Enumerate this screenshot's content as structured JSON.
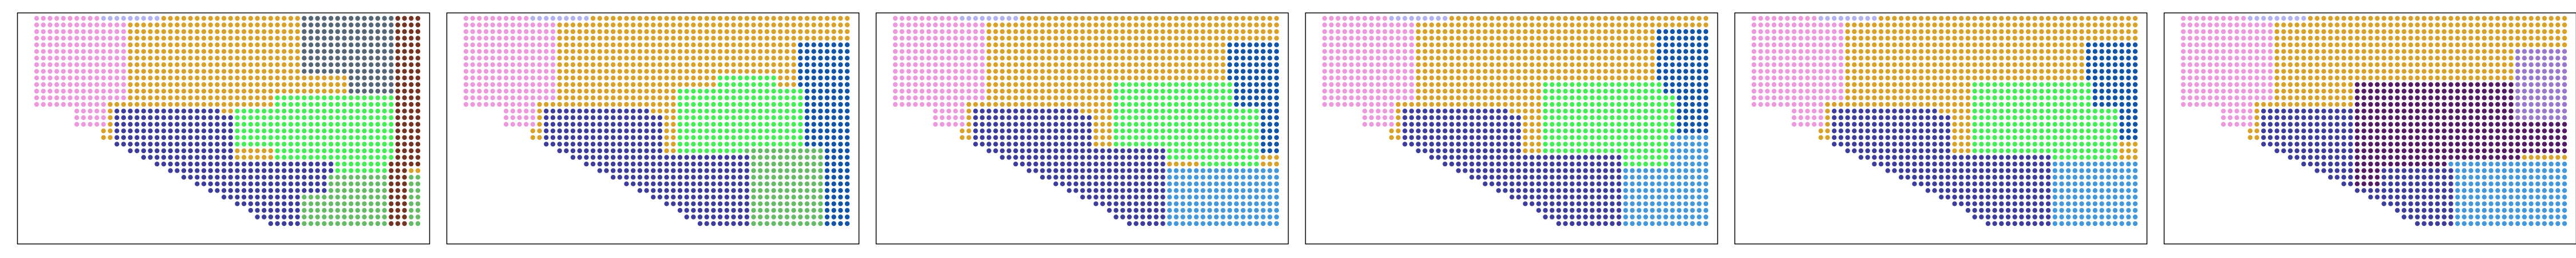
{
  "figure": {
    "background": "#ffffff",
    "panel_border_color": "#000000"
  },
  "cluster_colors": {
    "pink": "#ee99dd",
    "lavender": "#b3b3f2",
    "gold": "#d9a127",
    "green": "#44ee55",
    "navy": "#3d3d9e",
    "lightgreen": "#66bb66",
    "slate": "#556677",
    "maroon": "#773322",
    "blue": "#1155aa",
    "skyblue": "#4499dd",
    "purple": "#551a66",
    "violet": "#9977cc"
  },
  "chart_data": [
    {
      "type": "scatter",
      "panel": 1,
      "title": "",
      "xlabel": "",
      "ylabel": "",
      "grid": false,
      "legend": "none",
      "spot_grid": {
        "columns": 58,
        "rows": 32,
        "x_range": [
          0,
          1
        ],
        "y_range": [
          0,
          1
        ]
      },
      "clusters": [
        {
          "label": "pink",
          "color": "#ee99dd"
        },
        {
          "label": "lavender",
          "color": "#b3b3f2"
        },
        {
          "label": "gold",
          "color": "#d9a127"
        },
        {
          "label": "slate",
          "color": "#556677"
        },
        {
          "label": "maroon",
          "color": "#773322"
        },
        {
          "label": "green",
          "color": "#44ee55"
        },
        {
          "label": "navy",
          "color": "#3d3d9e"
        },
        {
          "label": "lightgreen",
          "color": "#66bb66"
        }
      ]
    },
    {
      "type": "scatter",
      "panel": 2,
      "title": "",
      "xlabel": "",
      "ylabel": "",
      "grid": false,
      "legend": "none",
      "spot_grid": {
        "columns": 58,
        "rows": 32,
        "x_range": [
          0,
          1
        ],
        "y_range": [
          0,
          1
        ]
      },
      "clusters": [
        {
          "label": "pink",
          "color": "#ee99dd"
        },
        {
          "label": "lavender",
          "color": "#b3b3f2"
        },
        {
          "label": "gold",
          "color": "#d9a127"
        },
        {
          "label": "blue",
          "color": "#1155aa"
        },
        {
          "label": "green",
          "color": "#44ee55"
        },
        {
          "label": "navy",
          "color": "#3d3d9e"
        },
        {
          "label": "lightgreen",
          "color": "#66bb66"
        }
      ]
    },
    {
      "type": "scatter",
      "panel": 3,
      "title": "",
      "xlabel": "",
      "ylabel": "",
      "grid": false,
      "legend": "none",
      "spot_grid": {
        "columns": 58,
        "rows": 32,
        "x_range": [
          0,
          1
        ],
        "y_range": [
          0,
          1
        ]
      },
      "clusters": [
        {
          "label": "pink",
          "color": "#ee99dd"
        },
        {
          "label": "lavender",
          "color": "#b3b3f2"
        },
        {
          "label": "gold",
          "color": "#d9a127"
        },
        {
          "label": "blue",
          "color": "#1155aa"
        },
        {
          "label": "green",
          "color": "#44ee55"
        },
        {
          "label": "navy",
          "color": "#3d3d9e"
        },
        {
          "label": "skyblue",
          "color": "#4499dd"
        }
      ]
    },
    {
      "type": "scatter",
      "panel": 4,
      "title": "",
      "xlabel": "",
      "ylabel": "",
      "grid": false,
      "legend": "none",
      "spot_grid": {
        "columns": 58,
        "rows": 32,
        "x_range": [
          0,
          1
        ],
        "y_range": [
          0,
          1
        ]
      },
      "clusters": [
        {
          "label": "pink",
          "color": "#ee99dd"
        },
        {
          "label": "lavender",
          "color": "#b3b3f2"
        },
        {
          "label": "gold",
          "color": "#d9a127"
        },
        {
          "label": "blue",
          "color": "#1155aa"
        },
        {
          "label": "green",
          "color": "#44ee55"
        },
        {
          "label": "navy",
          "color": "#3d3d9e"
        },
        {
          "label": "skyblue",
          "color": "#4499dd"
        }
      ]
    },
    {
      "type": "scatter",
      "panel": 5,
      "title": "",
      "xlabel": "",
      "ylabel": "",
      "grid": false,
      "legend": "none",
      "spot_grid": {
        "columns": 58,
        "rows": 32,
        "x_range": [
          0,
          1
        ],
        "y_range": [
          0,
          1
        ]
      },
      "clusters": [
        {
          "label": "pink",
          "color": "#ee99dd"
        },
        {
          "label": "lavender",
          "color": "#b3b3f2"
        },
        {
          "label": "gold",
          "color": "#d9a127"
        },
        {
          "label": "blue",
          "color": "#1155aa"
        },
        {
          "label": "green",
          "color": "#44ee55"
        },
        {
          "label": "navy",
          "color": "#3d3d9e"
        },
        {
          "label": "skyblue",
          "color": "#4499dd"
        }
      ]
    },
    {
      "type": "scatter",
      "panel": 6,
      "title": "",
      "xlabel": "",
      "ylabel": "",
      "grid": false,
      "legend": "none",
      "spot_grid": {
        "columns": 58,
        "rows": 32,
        "x_range": [
          0,
          1
        ],
        "y_range": [
          0,
          1
        ]
      },
      "clusters": [
        {
          "label": "pink",
          "color": "#ee99dd"
        },
        {
          "label": "lavender",
          "color": "#b3b3f2"
        },
        {
          "label": "gold",
          "color": "#d9a127"
        },
        {
          "label": "purple",
          "color": "#551a66"
        },
        {
          "label": "violet",
          "color": "#9977cc"
        },
        {
          "label": "navy",
          "color": "#3d3d9e"
        },
        {
          "label": "skyblue",
          "color": "#4499dd"
        }
      ]
    }
  ]
}
